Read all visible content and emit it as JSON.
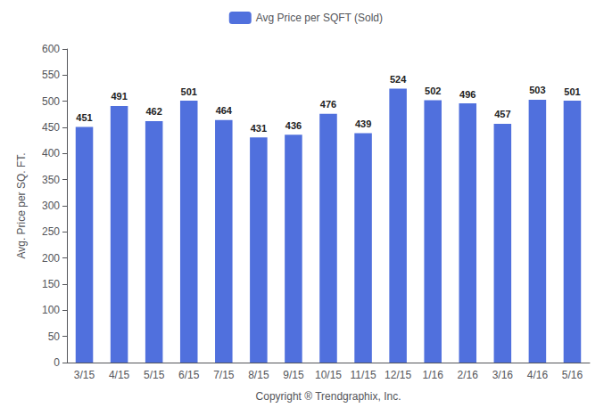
{
  "chart_data": {
    "type": "bar",
    "xlabel": "Copyright ® Trendgraphix, Inc.",
    "ylabel": "Avg. Price per SQ. FT.",
    "categories": [
      "3/15",
      "4/15",
      "5/15",
      "6/15",
      "7/15",
      "8/15",
      "9/15",
      "10/15",
      "11/15",
      "12/15",
      "1/16",
      "2/16",
      "3/16",
      "4/16",
      "5/16"
    ],
    "series": [
      {
        "name": "Avg Price per SQFT (Sold)",
        "values": [
          451,
          491,
          462,
          501,
          464,
          431,
          436,
          476,
          439,
          524,
          502,
          496,
          457,
          503,
          501
        ]
      }
    ],
    "ylim": [
      0,
      600
    ],
    "yticks": [
      0,
      50,
      100,
      150,
      200,
      250,
      300,
      350,
      400,
      450,
      500,
      550,
      600
    ],
    "grid": false,
    "legend": "top",
    "data_labels": true
  }
}
